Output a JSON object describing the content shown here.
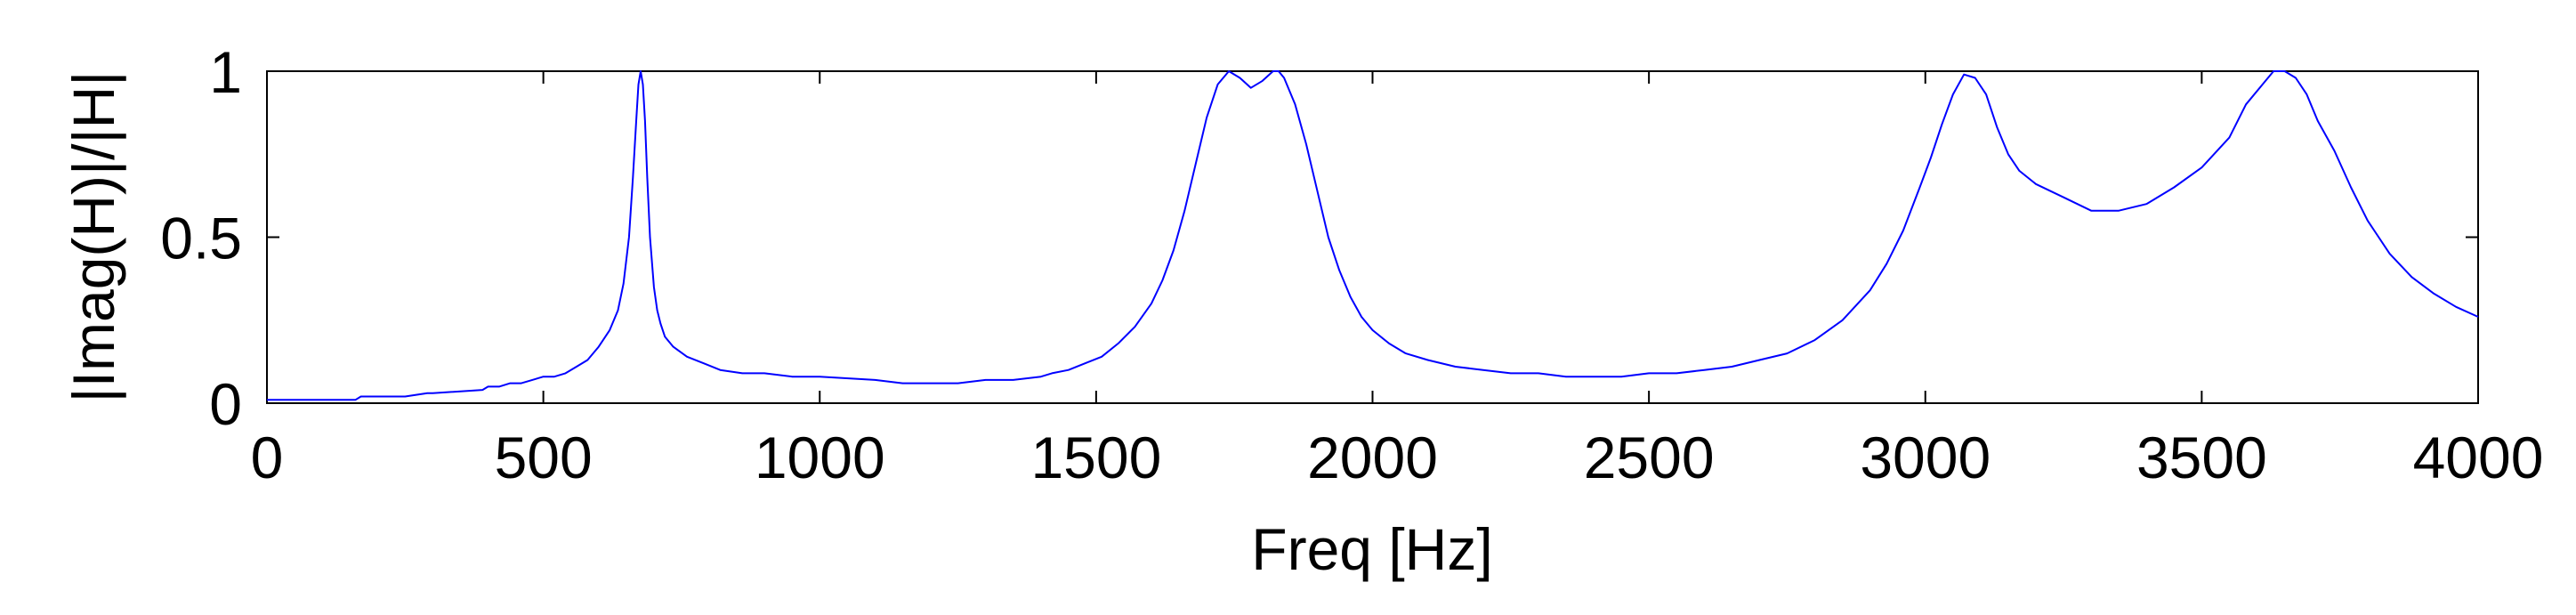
{
  "chart_data": {
    "type": "line",
    "xlabel": "Freq [Hz]",
    "ylabel": "|Imag(H)|/|H|",
    "xlim": [
      0,
      4000
    ],
    "ylim": [
      0,
      1
    ],
    "xticks": [
      0,
      500,
      1000,
      1500,
      2000,
      2500,
      3000,
      3500,
      4000
    ],
    "xtick_labels": [
      "0",
      "500",
      "1000",
      "1500",
      "2000",
      "2500",
      "3000",
      "3500",
      "4000"
    ],
    "yticks": [
      0,
      0.5,
      1
    ],
    "ytick_labels": [
      "0",
      "0.5",
      "1"
    ],
    "grid": false,
    "line_color": "#0000ff",
    "series": [
      {
        "x": [
          0,
          100,
          160,
          170,
          250,
          290,
          300,
          390,
          400,
          420,
          440,
          460,
          480,
          500,
          520,
          540,
          560,
          580,
          600,
          620,
          635,
          645,
          655,
          662,
          668,
          672,
          676,
          680,
          684,
          688,
          693,
          700,
          706,
          712,
          720,
          735,
          760,
          790,
          820,
          860,
          900,
          950,
          1000,
          1100,
          1150,
          1200,
          1250,
          1300,
          1350,
          1400,
          1420,
          1450,
          1480,
          1510,
          1540,
          1570,
          1600,
          1620,
          1640,
          1660,
          1680,
          1700,
          1720,
          1740,
          1760,
          1780,
          1800,
          1820,
          1830,
          1840,
          1860,
          1880,
          1900,
          1920,
          1940,
          1960,
          1980,
          2000,
          2030,
          2060,
          2100,
          2150,
          2200,
          2250,
          2300,
          2350,
          2400,
          2450,
          2500,
          2550,
          2600,
          2650,
          2700,
          2750,
          2800,
          2850,
          2900,
          2930,
          2960,
          2990,
          3010,
          3030,
          3050,
          3070,
          3090,
          3110,
          3130,
          3150,
          3170,
          3200,
          3250,
          3300,
          3350,
          3400,
          3450,
          3500,
          3550,
          3580,
          3610,
          3630,
          3650,
          3670,
          3690,
          3710,
          3740,
          3770,
          3800,
          3840,
          3880,
          3920,
          3960,
          4000
        ],
        "y": [
          0.01,
          0.01,
          0.01,
          0.02,
          0.02,
          0.03,
          0.03,
          0.04,
          0.05,
          0.05,
          0.06,
          0.06,
          0.07,
          0.08,
          0.08,
          0.09,
          0.11,
          0.13,
          0.17,
          0.22,
          0.28,
          0.36,
          0.5,
          0.68,
          0.85,
          0.96,
          1.0,
          0.96,
          0.85,
          0.68,
          0.5,
          0.35,
          0.28,
          0.24,
          0.2,
          0.17,
          0.14,
          0.12,
          0.1,
          0.09,
          0.09,
          0.08,
          0.08,
          0.07,
          0.06,
          0.06,
          0.06,
          0.07,
          0.07,
          0.08,
          0.09,
          0.1,
          0.12,
          0.14,
          0.18,
          0.23,
          0.3,
          0.37,
          0.46,
          0.58,
          0.72,
          0.86,
          0.96,
          1.0,
          0.98,
          0.95,
          0.97,
          1.0,
          1.0,
          0.98,
          0.9,
          0.78,
          0.64,
          0.5,
          0.4,
          0.32,
          0.26,
          0.22,
          0.18,
          0.15,
          0.13,
          0.11,
          0.1,
          0.09,
          0.09,
          0.08,
          0.08,
          0.08,
          0.09,
          0.09,
          0.1,
          0.11,
          0.13,
          0.15,
          0.19,
          0.25,
          0.34,
          0.42,
          0.52,
          0.65,
          0.74,
          0.84,
          0.93,
          0.99,
          0.98,
          0.93,
          0.83,
          0.75,
          0.7,
          0.66,
          0.62,
          0.58,
          0.58,
          0.6,
          0.65,
          0.71,
          0.8,
          0.9,
          0.96,
          1.0,
          1.0,
          0.98,
          0.93,
          0.85,
          0.76,
          0.65,
          0.55,
          0.45,
          0.38,
          0.33,
          0.29,
          0.26
        ]
      }
    ]
  }
}
